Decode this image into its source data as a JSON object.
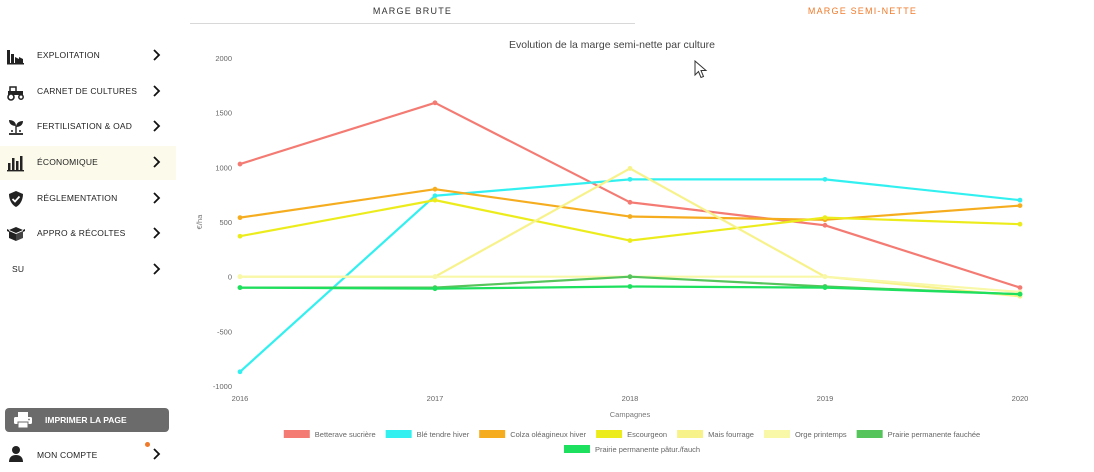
{
  "tabs": [
    {
      "label": "MARGE BRUTE",
      "active": false
    },
    {
      "label": "MARGE SEMI-NETTE",
      "active": true
    }
  ],
  "sidebar": {
    "items": [
      {
        "label": "EXPLOITATION",
        "icon": "factory-icon",
        "active": false
      },
      {
        "label": "CARNET DE CULTURES",
        "icon": "tractor-icon",
        "active": false
      },
      {
        "label": "FERTILISATION & OAD",
        "icon": "seedling-icon",
        "active": false
      },
      {
        "label": "ÉCONOMIQUE",
        "icon": "bar-chart-icon",
        "active": true
      },
      {
        "label": "RÉGLEMENTATION",
        "icon": "shield-check-icon",
        "active": false
      },
      {
        "label": "APPRO & RÉCOLTES",
        "icon": "boxes-icon",
        "active": false
      },
      {
        "label": "SU",
        "icon": "",
        "active": false
      }
    ],
    "print_label": "IMPRIMER LA PAGE",
    "account_label": "MON COMPTE"
  },
  "colors": {
    "accent": "#f07a2a",
    "active_bg": "#fcfaea",
    "print_bg": "#6b6b6b"
  },
  "chart_data": {
    "type": "line",
    "title": "Evolution de la marge semi-nette par culture",
    "xlabel": "Campagnes",
    "ylabel": "€/ha",
    "ylim": [
      -1000,
      2000
    ],
    "yticks": [
      2000,
      1500,
      1000,
      500,
      0,
      -500,
      -1000
    ],
    "categories": [
      "2016",
      "2017",
      "2018",
      "2019",
      "2020"
    ],
    "grid": false,
    "legend_position": "bottom",
    "series": [
      {
        "name": "Betterave sucrière",
        "color": "#f47b73",
        "values": [
          1030,
          1590,
          680,
          470,
          -100
        ]
      },
      {
        "name": "Blé tendre hiver",
        "color": "#33f0f0",
        "values": [
          -870,
          740,
          890,
          890,
          700
        ]
      },
      {
        "name": "Colza oléagineux hiver",
        "color": "#f5ad1f",
        "values": [
          540,
          800,
          550,
          520,
          650
        ]
      },
      {
        "name": "Escourgeon",
        "color": "#ecec1c",
        "values": [
          370,
          700,
          330,
          540,
          480
        ]
      },
      {
        "name": "Mais fourrage",
        "color": "#f7f28a",
        "values": [
          0,
          0,
          990,
          0,
          -180
        ]
      },
      {
        "name": "Orge printemps",
        "color": "#f8f8a8",
        "values": [
          0,
          0,
          0,
          0,
          -140
        ]
      },
      {
        "name": "Prairie permanente fauchée",
        "color": "#55c45a",
        "values": [
          -100,
          -100,
          0,
          -90,
          -160
        ]
      },
      {
        "name": "Prairie permanente pâtur./fauch",
        "color": "#1de05e",
        "values": [
          -100,
          -110,
          -90,
          -100,
          -160
        ]
      }
    ]
  }
}
